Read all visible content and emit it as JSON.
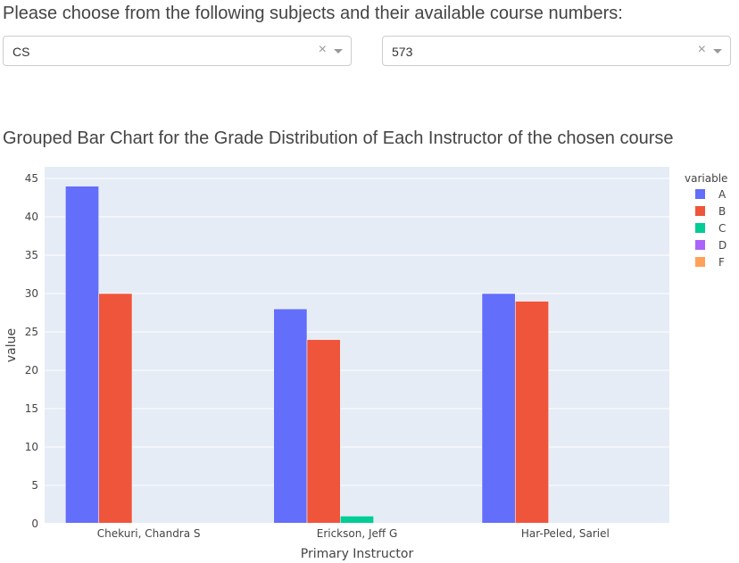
{
  "prompt": "Please choose from the following subjects and their available course numbers:",
  "subject_dropdown": {
    "value": "CS",
    "clear_glyph": "×"
  },
  "course_dropdown": {
    "value": "573",
    "clear_glyph": "×"
  },
  "chart_data": {
    "type": "bar",
    "title": "Grouped Bar Chart for the Grade Distribution of Each Instructor of the chosen course",
    "xlabel": "Primary Instructor",
    "ylabel": "value",
    "ylim": [
      0,
      45
    ],
    "yticks": [
      0,
      5,
      10,
      15,
      20,
      25,
      30,
      35,
      40,
      45
    ],
    "grid": true,
    "legend_title": "variable",
    "legend_position": "top-right",
    "categories": [
      "Chekuri, Chandra S",
      "Erickson, Jeff G",
      "Har-Peled, Sariel"
    ],
    "series": [
      {
        "name": "A",
        "color": "#636efa",
        "values": [
          44,
          28,
          30
        ]
      },
      {
        "name": "B",
        "color": "#ef553b",
        "values": [
          30,
          24,
          29
        ]
      },
      {
        "name": "C",
        "color": "#00cc96",
        "values": [
          0,
          1,
          0
        ]
      },
      {
        "name": "D",
        "color": "#ab63fa",
        "values": [
          0,
          0,
          0
        ]
      },
      {
        "name": "F",
        "color": "#ffa15a",
        "values": [
          0,
          0,
          0
        ]
      }
    ],
    "plot_background": "#e5ecf6"
  }
}
